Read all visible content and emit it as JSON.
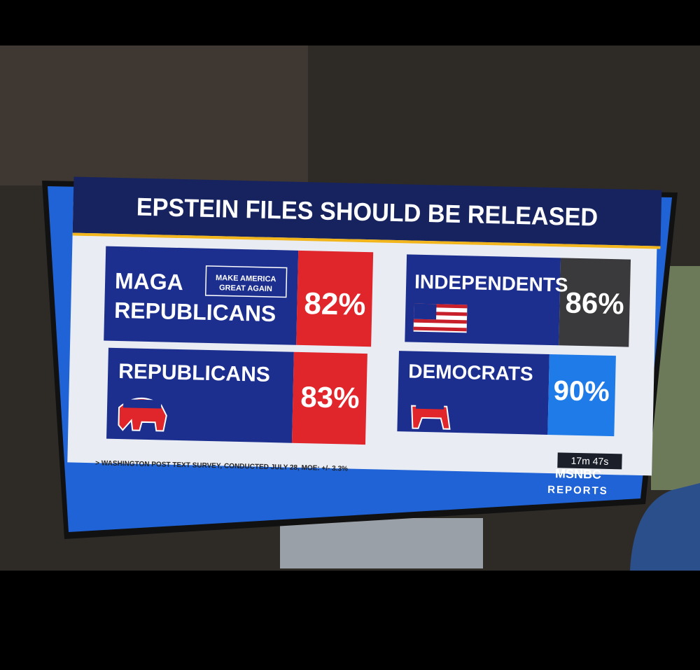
{
  "title": "EPSTEIN FILES SHOULD BE RELEASED",
  "panels": [
    {
      "label": [
        "MAGA",
        "REPUBLICANS"
      ],
      "badge": [
        "MAKE AMERICA",
        "GREAT AGAIN"
      ],
      "value": "82%"
    },
    {
      "label": [
        "INDEPENDENTS"
      ],
      "value": "86%"
    },
    {
      "label": [
        "REPUBLICANS"
      ],
      "value": "83%"
    },
    {
      "label": [
        "DEMOCRATS"
      ],
      "value": "90%"
    }
  ],
  "source": "> WASHINGTON POST TEXT SURVEY, CONDUCTED JULY 28, MOE: +/- 3.3%",
  "overlay": {
    "timer": "17m 47s"
  },
  "logo": {
    "network": "MSNBC",
    "show": "REPORTS"
  }
}
